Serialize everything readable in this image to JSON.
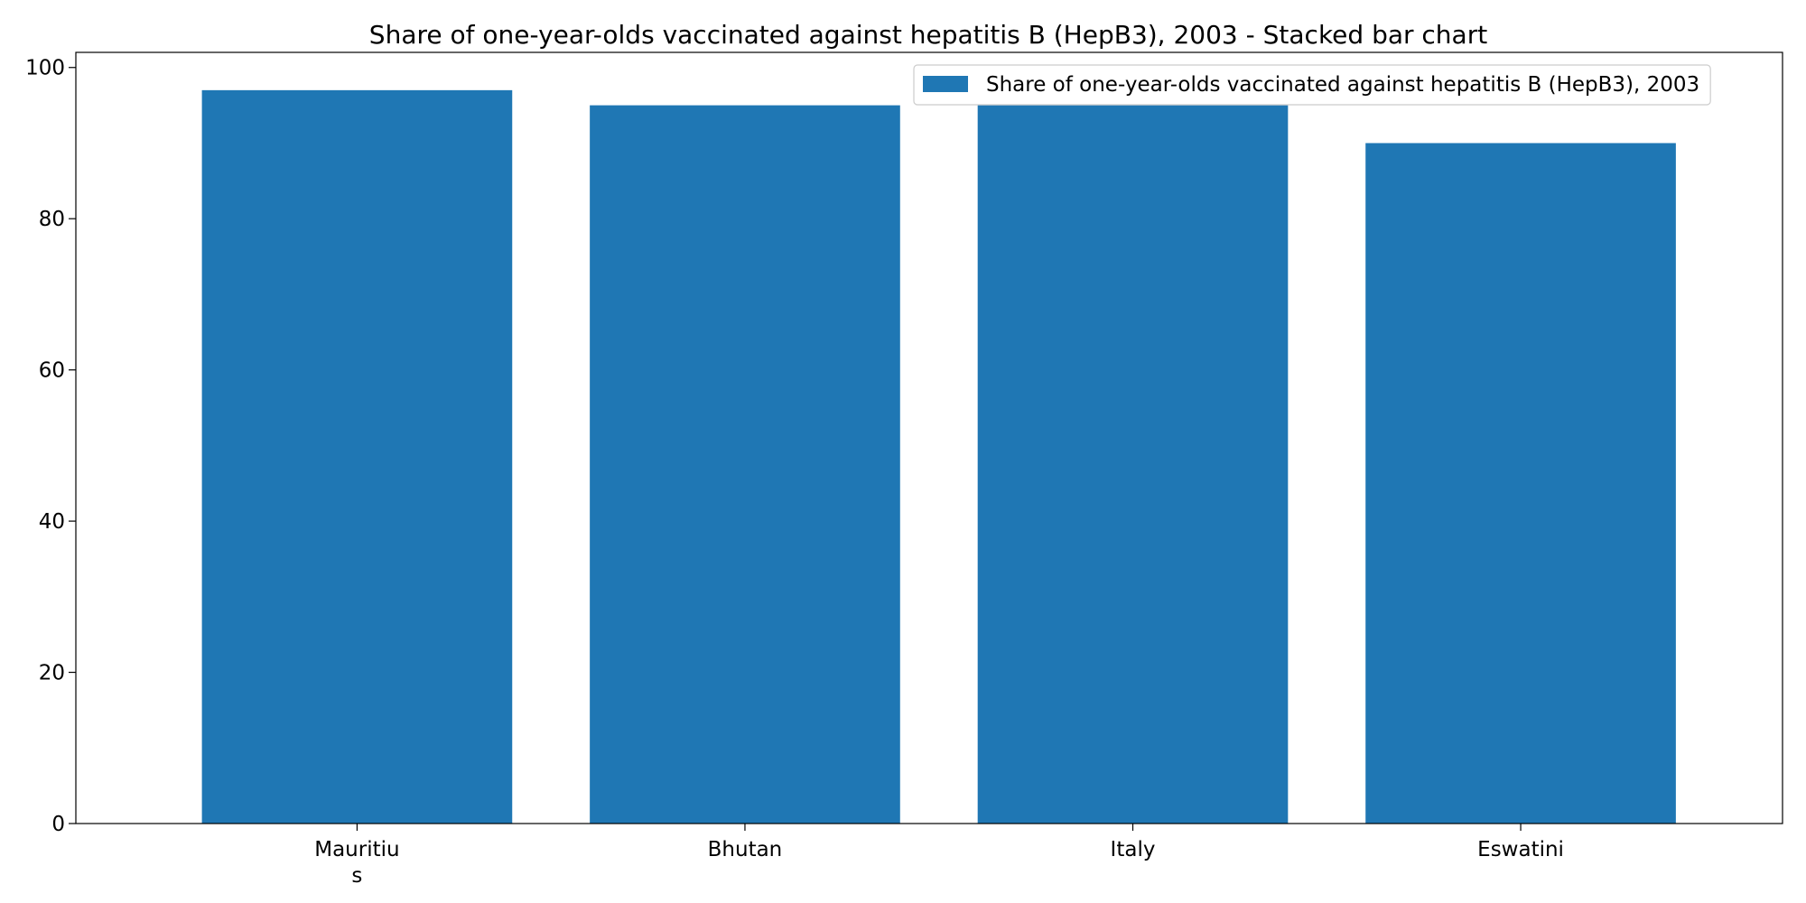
{
  "chart_data": {
    "type": "bar",
    "title": "Share of one-year-olds vaccinated against hepatitis B (HepB3), 2003 - Stacked bar chart",
    "categories": [
      [
        "Mauritiu",
        "s"
      ],
      [
        "Bhutan"
      ],
      [
        "Italy"
      ],
      [
        "Eswatini"
      ]
    ],
    "series": [
      {
        "name": "Share of one-year-olds vaccinated against hepatitis B (HepB3), 2003",
        "color": "#1f77b4",
        "values": [
          97,
          95,
          95,
          90
        ]
      }
    ],
    "xlabel": "",
    "ylabel": "",
    "ylim": [
      0,
      102
    ],
    "yticks": [
      0,
      20,
      40,
      60,
      80,
      100
    ],
    "grid": false,
    "legend_position": "top-right"
  }
}
